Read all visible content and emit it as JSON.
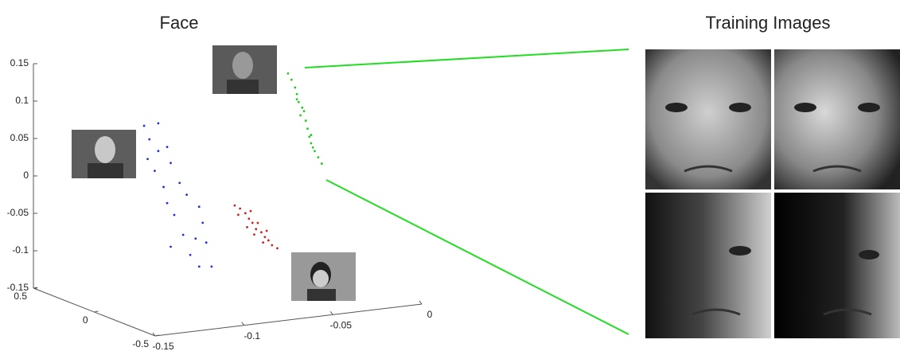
{
  "chart_data": {
    "type": "scatter3d",
    "title": "Face",
    "side_title": "Training Images",
    "xlim": [
      -0.15,
      0
    ],
    "xticks": [
      -0.15,
      -0.1,
      -0.05,
      0
    ],
    "ylim": [
      -0.5,
      0.5
    ],
    "yticks": [
      -0.5,
      0,
      0.5
    ],
    "zlim": [
      -0.15,
      0.15
    ],
    "zticks": [
      -0.15,
      -0.1,
      -0.05,
      0,
      0.05,
      0.1,
      0.15
    ],
    "series": [
      {
        "color": "#22cc22",
        "x": [
          -0.041,
          -0.039,
          -0.037,
          -0.036,
          -0.035,
          -0.033,
          -0.034,
          -0.031,
          -0.03,
          -0.028,
          -0.028,
          -0.026,
          -0.024,
          -0.022,
          -0.032,
          -0.036,
          -0.027,
          -0.029
        ],
        "y": [
          0,
          0,
          0,
          0,
          0,
          0,
          0,
          0,
          0,
          0,
          0,
          0,
          0,
          0,
          0,
          0,
          0,
          0
        ],
        "z": [
          0.138,
          0.129,
          0.118,
          0.109,
          0.098,
          0.09,
          0.08,
          0.072,
          0.061,
          0.052,
          0.041,
          0.03,
          0.021,
          0.012,
          0.085,
          0.102,
          0.035,
          0.05
        ]
      },
      {
        "color": "#2233cc",
        "x": [
          -0.122,
          -0.114,
          -0.119,
          -0.114,
          -0.12,
          -0.109,
          -0.116,
          -0.107,
          -0.111,
          -0.102,
          -0.109,
          -0.098,
          -0.105,
          -0.091,
          -0.1,
          -0.089,
          -0.096,
          -0.087,
          -0.091,
          -0.084,
          -0.107,
          -0.093
        ],
        "y": [
          0,
          0,
          0,
          0,
          0,
          0,
          0,
          0,
          0,
          0,
          0,
          0,
          0,
          0,
          0,
          0,
          0,
          0,
          0,
          0,
          0,
          0
        ],
        "z": [
          0.091,
          0.092,
          0.072,
          0.055,
          0.046,
          0.059,
          0.029,
          0.037,
          0.006,
          0.009,
          -0.016,
          -0.008,
          -0.033,
          -0.026,
          -0.061,
          -0.048,
          -0.089,
          -0.075,
          -0.106,
          -0.108,
          -0.075,
          -0.068
        ]
      },
      {
        "color": "#cc2222",
        "x": [
          -0.071,
          -0.068,
          -0.065,
          -0.069,
          -0.063,
          -0.061,
          -0.064,
          -0.059,
          -0.056,
          -0.06,
          -0.054,
          -0.052,
          -0.055,
          -0.05,
          -0.047,
          -0.062,
          -0.058,
          -0.053
        ],
        "y": [
          0,
          0,
          0,
          0,
          0,
          0,
          0,
          0,
          0,
          0,
          0,
          0,
          0,
          0,
          0,
          0,
          0,
          0
        ],
        "z": [
          -0.03,
          -0.035,
          -0.042,
          -0.043,
          -0.05,
          -0.056,
          -0.061,
          -0.065,
          -0.07,
          -0.072,
          -0.077,
          -0.082,
          -0.084,
          -0.089,
          -0.094,
          -0.04,
          -0.057,
          -0.069
        ]
      }
    ]
  }
}
